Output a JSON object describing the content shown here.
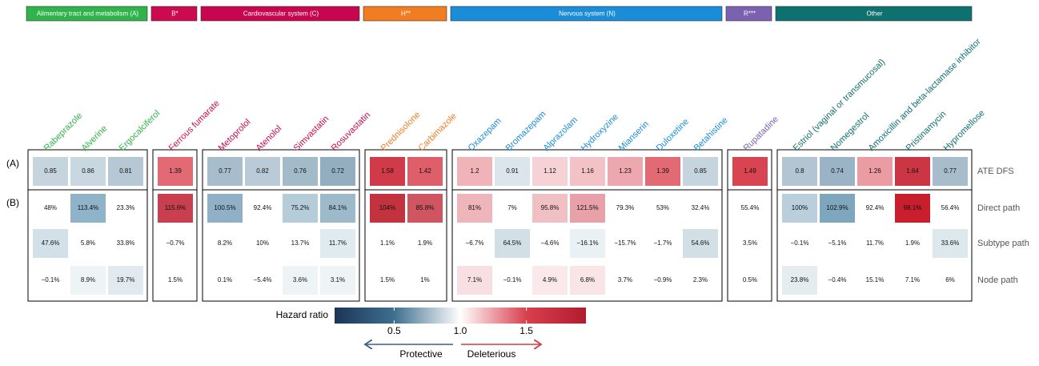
{
  "chart_data": {
    "type": "heatmap",
    "groups": [
      {
        "name": "Alimentary tract and metabolism (A)",
        "color": "#2fb34a",
        "drugs": [
          "Rabeprazole",
          "Alverine",
          "Ergocalciferol"
        ]
      },
      {
        "name": "B*",
        "color": "#cc0a4f",
        "drugs": [
          "Ferrous fumarate"
        ]
      },
      {
        "name": "Cardiovascular system (C)",
        "color": "#c8064f",
        "drugs": [
          "Metoprolol",
          "Atenolol",
          "Simvastatin",
          "Rosuvastatin"
        ]
      },
      {
        "name": "H**",
        "color": "#f07d22",
        "drugs": [
          "Prednisolone",
          "Carbimazole"
        ]
      },
      {
        "name": "Nervous system (N)",
        "color": "#1a8cd8",
        "drugs": [
          "Oxazepam",
          "Bromazepam",
          "Alprazolam",
          "Hydroxyzine",
          "Mianserin",
          "Duloxetine",
          "Betahistine"
        ]
      },
      {
        "name": "R***",
        "color": "#7b62b0",
        "drugs": [
          "Rupatadine"
        ]
      },
      {
        "name": "Other",
        "color": "#0f7070",
        "drugs": [
          "Estriol (vaginal or transmucosal)",
          "Nomegestrol",
          "Amoxicillin and beta-lactamase inhibitor",
          "Pristinamycin",
          "Hypromellose"
        ]
      }
    ],
    "panels": [
      "(A)",
      "(B)"
    ],
    "rows": [
      {
        "name": "ATE DFS",
        "values": [
          0.85,
          0.86,
          0.81,
          1.39,
          0.77,
          0.82,
          0.76,
          0.72,
          1.58,
          1.42,
          1.2,
          0.91,
          1.12,
          1.16,
          1.23,
          1.39,
          0.85,
          1.49,
          0.8,
          0.74,
          1.26,
          1.64,
          0.77
        ]
      },
      {
        "name": "Direct path",
        "values": [
          48,
          113.4,
          23.3,
          115.6,
          100.5,
          92.4,
          75.2,
          84.1,
          104,
          85.8,
          81,
          7,
          95.8,
          121.5,
          79.3,
          53,
          32.4,
          55.4,
          100,
          102.9,
          92.4,
          98.1,
          56.4
        ],
        "value_labels": [
          "48%",
          "113.4%",
          "23.3%",
          "115.6%",
          "100.5%",
          "92.4%",
          "75.2%",
          "84.1%",
          "104%",
          "85.8%",
          "81%",
          "7%",
          "95.8%",
          "121.5%",
          "79.3%",
          "53%",
          "32.4%",
          "55.4%",
          "100%",
          "102.9%",
          "92.4%",
          "98.1%",
          "56.4%"
        ],
        "colors": [
          null,
          "#8fb3c8",
          null,
          "#c8404f",
          "#8fb0c6",
          null,
          "#b5cdd9",
          "#9dbacb",
          "#c2333f",
          "#cf5560",
          "#eeb6bb",
          null,
          "#f0c0c4",
          "#e8a1a8",
          null,
          null,
          null,
          null,
          "#b9cfdb",
          "#7ea6bd",
          null,
          "#c81e2e",
          null
        ]
      },
      {
        "name": "Subtype path",
        "values": [
          47.6,
          5.8,
          33.8,
          -0.7,
          8.2,
          10,
          13.7,
          11.7,
          1.1,
          1.9,
          -6.7,
          64.5,
          -4.6,
          -16.1,
          -15.7,
          -1.7,
          54.6,
          3.5,
          -0.1,
          -5.1,
          11.7,
          1.9,
          33.6
        ],
        "value_labels": [
          "47.6%",
          "5.8%",
          "33.8%",
          "−0.7%",
          "8.2%",
          "10%",
          "13.7%",
          "11.7%",
          "1.1%",
          "1.9%",
          "−6.7%",
          "64.5%",
          "−4.6%",
          "−16.1%",
          "−15.7%",
          "−1.7%",
          "54.6%",
          "3.5%",
          "−0.1%",
          "−5.1%",
          "11.7%",
          "1.9%",
          "33.6%"
        ],
        "colors": [
          "#d2e0e7",
          null,
          null,
          null,
          null,
          null,
          null,
          "#e0ebef",
          null,
          null,
          null,
          "#d2e0e6",
          null,
          "#e9f1f4",
          null,
          null,
          "#d2e0e6",
          null,
          null,
          null,
          null,
          null,
          "#dde8ed"
        ]
      },
      {
        "name": "Node path",
        "values": [
          -0.1,
          8.9,
          19.7,
          1.5,
          0.1,
          -5.4,
          3.6,
          3.1,
          1.5,
          1,
          7.1,
          -0.1,
          4.9,
          6.8,
          3.7,
          -0.9,
          2.3,
          0.5,
          23.8,
          -0.4,
          15.1,
          7.1,
          6
        ],
        "value_labels": [
          "−0.1%",
          "8.9%",
          "19.7%",
          "1.5%",
          "0.1%",
          "−5.4%",
          "3.6%",
          "3.1%",
          "1.5%",
          "1%",
          "7.1%",
          "−0.1%",
          "4.9%",
          "6.8%",
          "3.7%",
          "−0.9%",
          "2.3%",
          "0.5%",
          "23.8%",
          "−0.4%",
          "15.1%",
          "7.1%",
          "6%"
        ],
        "colors": [
          null,
          "#eef4f6",
          "#e0eaef",
          null,
          null,
          null,
          "#eef4f6",
          "#eef4f6",
          null,
          null,
          "#f8dfe1",
          null,
          "#fae8ea",
          "#f9e4e6",
          null,
          null,
          null,
          null,
          "#e4ecf0",
          null,
          null,
          null,
          null
        ]
      }
    ],
    "colorbar": {
      "title": "Hazard ratio",
      "clim": [
        0.05,
        1.95
      ],
      "ticks": [
        0.5,
        {
          "value": 1,
          "label": "1.0"
        },
        1.5
      ],
      "colorscale": [
        [
          0.05,
          "#1c3557"
        ],
        [
          0.5,
          "#3f6f8f"
        ],
        [
          1,
          "#ffffff"
        ],
        [
          1.5,
          "#d8404e"
        ],
        [
          1.95,
          "#b01c2e"
        ]
      ]
    },
    "arrows": [
      {
        "label": "Protective",
        "color": "#3b5f86"
      },
      {
        "label": "Deleterious",
        "color": "#d23a45"
      }
    ]
  }
}
